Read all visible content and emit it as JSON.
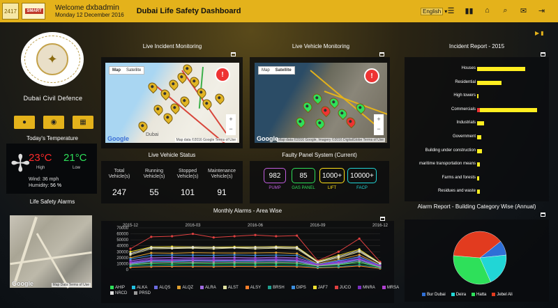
{
  "header": {
    "logo_left": "2417",
    "logo_right": "SMART",
    "welcome_label": "Welcome",
    "username": "dxbadmin",
    "date": "Monday 12 December 2016",
    "title": "Dubai Life Safety Dashboard",
    "language": "English",
    "icons": [
      "menu-icon",
      "bar-chart-icon",
      "home-icon",
      "search-icon",
      "mail-icon",
      "exit-icon"
    ]
  },
  "sidebar": {
    "department": "Dubai Civil Defence",
    "quick_buttons": [
      "user-icon",
      "location-icon",
      "building-icon"
    ],
    "temperature_title": "Today's Temperature",
    "high_value": "23",
    "low_value": "21",
    "unit": "°C",
    "high_label": "High",
    "low_label": "Low",
    "wind_label": "Wind:",
    "wind_value": "36 mph",
    "humidity_label": "Humidity:",
    "humidity_value": "56 %",
    "alarms_title": "Life Safety Alarms",
    "map_footer": "Map Data",
    "map_terms": "Terms of Use"
  },
  "incident_map": {
    "title": "Live Incident Monitoring",
    "tab_map": "Map",
    "tab_satellite": "Satellite",
    "city": "Dubai",
    "footer": "Map data ©2016 Google",
    "terms": "Terms of Use"
  },
  "vehicle_map": {
    "title": "Live Vehicle Monitoring",
    "tab_map": "Map",
    "tab_satellite": "Satellite",
    "footer": "Map data ©2016 Google, Imagery ©2016 DigitalGlobe",
    "terms": "Terms of Use"
  },
  "vehicle_status": {
    "title": "Live Vehicle Status",
    "columns": [
      {
        "label_1": "Total",
        "label_2": "Vehicle(s)",
        "value": "247"
      },
      {
        "label_1": "Running",
        "label_2": "Vehicle(s)",
        "value": "55"
      },
      {
        "label_1": "Stopped",
        "label_2": "Vehicle(s)",
        "value": "101"
      },
      {
        "label_1": "Maintenance",
        "label_2": "Vehicle(s)",
        "value": "91"
      }
    ]
  },
  "faulty_panel": {
    "title": "Faulty Panel System (Current)",
    "items": [
      {
        "value": "982",
        "label": "PUMP",
        "color": "#c15ee0"
      },
      {
        "value": "85",
        "label": "GAS PANEL",
        "color": "#2ee05a"
      },
      {
        "value": "1000+",
        "label": "LIFT",
        "color": "#ffe21a"
      },
      {
        "value": "10000+",
        "label": "FACP",
        "color": "#21d6d6"
      }
    ]
  },
  "incident_report": {
    "title": "Incident Report - 2015",
    "chart_data": {
      "type": "bar",
      "categories": [
        "Houses",
        "Residential",
        "High towers",
        "Commercials",
        "Industrials",
        "Government",
        "Building under construction",
        "maritime transportation means",
        "Farms and forests",
        "Residues and waste"
      ],
      "values": [
        72,
        36,
        2,
        90,
        10,
        6,
        7,
        4,
        3,
        4
      ],
      "title": "Incident Report - 2015",
      "xlabel": "",
      "ylabel": "",
      "xlim": [
        0,
        100
      ],
      "colors": [
        "#ffee20"
      ]
    }
  },
  "monthly_alarms": {
    "title": "Monthly Alarms - Area Wise",
    "chart_data": {
      "type": "line",
      "title": "Monthly Alarms - Area Wise",
      "x": [
        "2015-12",
        "2016-01",
        "2016-02",
        "2016-03",
        "2016-04",
        "2016-05",
        "2016-06",
        "2016-07",
        "2016-08",
        "2016-09",
        "2016-10",
        "2016-11",
        "2016-12"
      ],
      "xticks": [
        "2015-12",
        "2016-03",
        "2016-06",
        "2016-09",
        "2016-12"
      ],
      "ylim": [
        0,
        70000
      ],
      "yticks": [
        0,
        10000,
        20000,
        30000,
        40000,
        50000,
        60000,
        70000
      ],
      "series": [
        {
          "name": "AHIP",
          "color": "#2ee05a",
          "values": [
            8000,
            10000,
            9500,
            10500,
            9800,
            10200,
            10000,
            10500,
            9900,
            6000,
            8000,
            12000,
            4000
          ]
        },
        {
          "name": "ALKA",
          "color": "#21bfe0",
          "values": [
            10000,
            14000,
            13500,
            14500,
            14000,
            14200,
            14000,
            14500,
            14000,
            7000,
            10000,
            16000,
            5000
          ]
        },
        {
          "name": "ALQS",
          "color": "#6a6adf",
          "values": [
            12000,
            16000,
            16000,
            16500,
            16200,
            16000,
            16500,
            16800,
            16000,
            8000,
            12000,
            18000,
            6000
          ]
        },
        {
          "name": "ALQZ",
          "color": "#e0a030",
          "values": [
            20000,
            28000,
            27500,
            28500,
            28000,
            27800,
            28000,
            28500,
            27000,
            10000,
            17000,
            25000,
            8000
          ]
        },
        {
          "name": "ALRA",
          "color": "#a06ae0",
          "values": [
            15000,
            20000,
            20500,
            20000,
            20200,
            20500,
            20000,
            20800,
            20000,
            9000,
            14000,
            22000,
            7000
          ]
        },
        {
          "name": "ALST",
          "color": "#e0e0a0",
          "values": [
            25000,
            35000,
            35500,
            36000,
            35000,
            36500,
            35000,
            36000,
            35000,
            12000,
            20000,
            30000,
            10000
          ]
        },
        {
          "name": "ALSY",
          "color": "#ff7f2a",
          "values": [
            4000,
            5000,
            5200,
            5100,
            5000,
            5300,
            5100,
            5200,
            5000,
            3000,
            4000,
            6000,
            2000
          ]
        },
        {
          "name": "BRSH",
          "color": "#1fa090",
          "values": [
            6000,
            7000,
            7200,
            7100,
            7000,
            7300,
            7100,
            7200,
            7000,
            4000,
            5000,
            8000,
            3000
          ]
        },
        {
          "name": "DIPS",
          "color": "#3b8edf",
          "values": [
            18000,
            24000,
            24500,
            24200,
            24000,
            24600,
            24100,
            24400,
            24000,
            9000,
            15000,
            21000,
            7500
          ]
        },
        {
          "name": "JAF7",
          "color": "#f0e030",
          "values": [
            30000,
            38000,
            38500,
            38000,
            37800,
            38200,
            38000,
            38500,
            38000,
            14000,
            24000,
            34000,
            11000
          ]
        },
        {
          "name": "JUCO",
          "color": "#e04040",
          "values": [
            35000,
            55000,
            56000,
            60000,
            54000,
            56000,
            58000,
            56000,
            57000,
            15000,
            30000,
            52000,
            13000
          ]
        },
        {
          "name": "MNRA",
          "color": "#7a30c0",
          "values": [
            13000,
            18000,
            17500,
            18500,
            18000,
            17800,
            18200,
            18500,
            18000,
            8500,
            13000,
            19000,
            6500
          ]
        },
        {
          "name": "MRSA",
          "color": "#b040d0",
          "values": [
            11000,
            15000,
            15200,
            15100,
            15000,
            15300,
            15100,
            15400,
            15000,
            7500,
            11000,
            17000,
            5500
          ]
        },
        {
          "name": "NRCD",
          "color": "#dddddd",
          "values": [
            27000,
            37000,
            36500,
            37500,
            37000,
            36800,
            37200,
            37500,
            37000,
            13000,
            22000,
            32000,
            10500
          ]
        },
        {
          "name": "PRSD",
          "color": "#999999",
          "values": [
            9000,
            12000,
            12200,
            12100,
            12000,
            12300,
            12100,
            12400,
            12000,
            6500,
            9000,
            14000,
            4500
          ]
        }
      ]
    }
  },
  "alarm_report": {
    "title": "Alarm Report - Building Category Wise (Annual)",
    "chart_data": {
      "type": "pie",
      "title": "Alarm Report - Building Category Wise (Annual)",
      "labels": [
        "Bur Dubai",
        "Deira",
        "Hatta",
        "Jebel Ali"
      ],
      "values": [
        9,
        20,
        33,
        38
      ],
      "colors": [
        "#2f6fd6",
        "#21d6d6",
        "#2ee05a",
        "#e23b1f"
      ]
    }
  }
}
